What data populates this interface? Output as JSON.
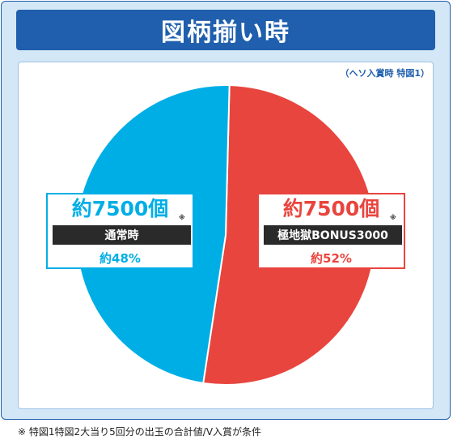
{
  "title": "図柄揃い時",
  "note_top": "（ヘソ入賞時 特図1）",
  "footnote": "※ 特図1特図2大当り5回分の出玉の合計値/V入賞が条件",
  "colors": {
    "left": "#00aee6",
    "right": "#e8453e",
    "title_bg": "#1f5fad",
    "frame_bg": "#d4e7f6"
  },
  "chart_data": {
    "type": "pie",
    "title": "図柄揃い時",
    "slices": [
      {
        "name": "通常時",
        "value": 48,
        "amount_label": "約7500個",
        "mark": "※",
        "percent_label": "約48%",
        "color": "#00aee6"
      },
      {
        "name": "極地獄BONUS3000",
        "value": 52,
        "amount_label": "約7500個",
        "mark": "※",
        "percent_label": "約52%",
        "color": "#e8453e"
      }
    ],
    "start_angle": "12 o'clock",
    "direction": "clockwise from right slice"
  }
}
